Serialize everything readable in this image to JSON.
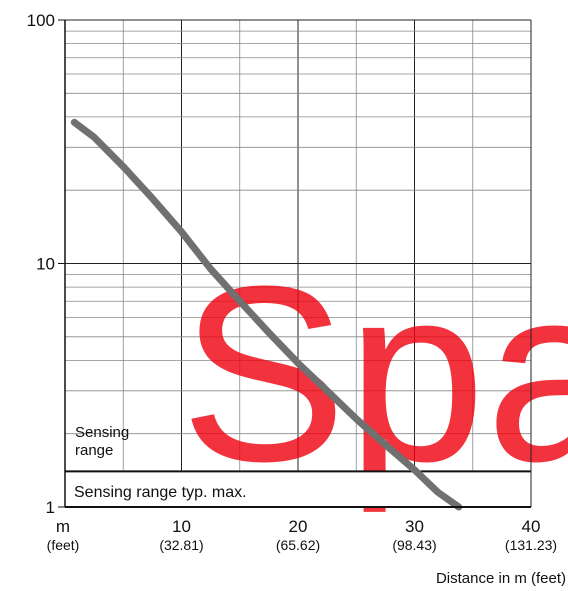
{
  "chart_data": {
    "type": "line",
    "xlabel": "Distance in m (feet)",
    "ylabel": "",
    "xlim": [
      0,
      40
    ],
    "ylim": [
      1,
      100
    ],
    "y_scale": "log",
    "x_ticks": [
      {
        "value": 0,
        "label": "m",
        "sublabel": "(feet)"
      },
      {
        "value": 10,
        "label": "10",
        "sublabel": "(32.81)"
      },
      {
        "value": 20,
        "label": "20",
        "sublabel": "(65.62)"
      },
      {
        "value": 30,
        "label": "30",
        "sublabel": "(98.43)"
      },
      {
        "value": 40,
        "label": "40",
        "sublabel": "(131.23)"
      }
    ],
    "y_ticks": [
      {
        "value": 1,
        "label": "1"
      },
      {
        "value": 10,
        "label": "10"
      },
      {
        "value": 100,
        "label": "100"
      }
    ],
    "grid": true,
    "series": [
      {
        "color": "#707070",
        "points": [
          [
            0.8,
            38
          ],
          [
            2.5,
            33
          ],
          [
            5,
            25
          ],
          [
            7.5,
            18.5
          ],
          [
            10,
            13.5
          ],
          [
            12.5,
            9.5
          ],
          [
            15,
            7.0
          ],
          [
            17.5,
            5.2
          ],
          [
            20,
            3.9
          ],
          [
            22.5,
            3.0
          ],
          [
            25,
            2.3
          ],
          [
            27.5,
            1.8
          ],
          [
            30,
            1.42
          ],
          [
            32,
            1.15
          ],
          [
            33.8,
            1.0
          ]
        ]
      }
    ],
    "reference_line": {
      "value": 1.4,
      "color": "#111111"
    },
    "annotations": {
      "sensing_range_line1": "Sensing",
      "sensing_range_line2": "range",
      "sensing_range_max": "Sensing range typ. max."
    },
    "watermark": {
      "text": "Spa",
      "color": "#f0000d"
    }
  }
}
